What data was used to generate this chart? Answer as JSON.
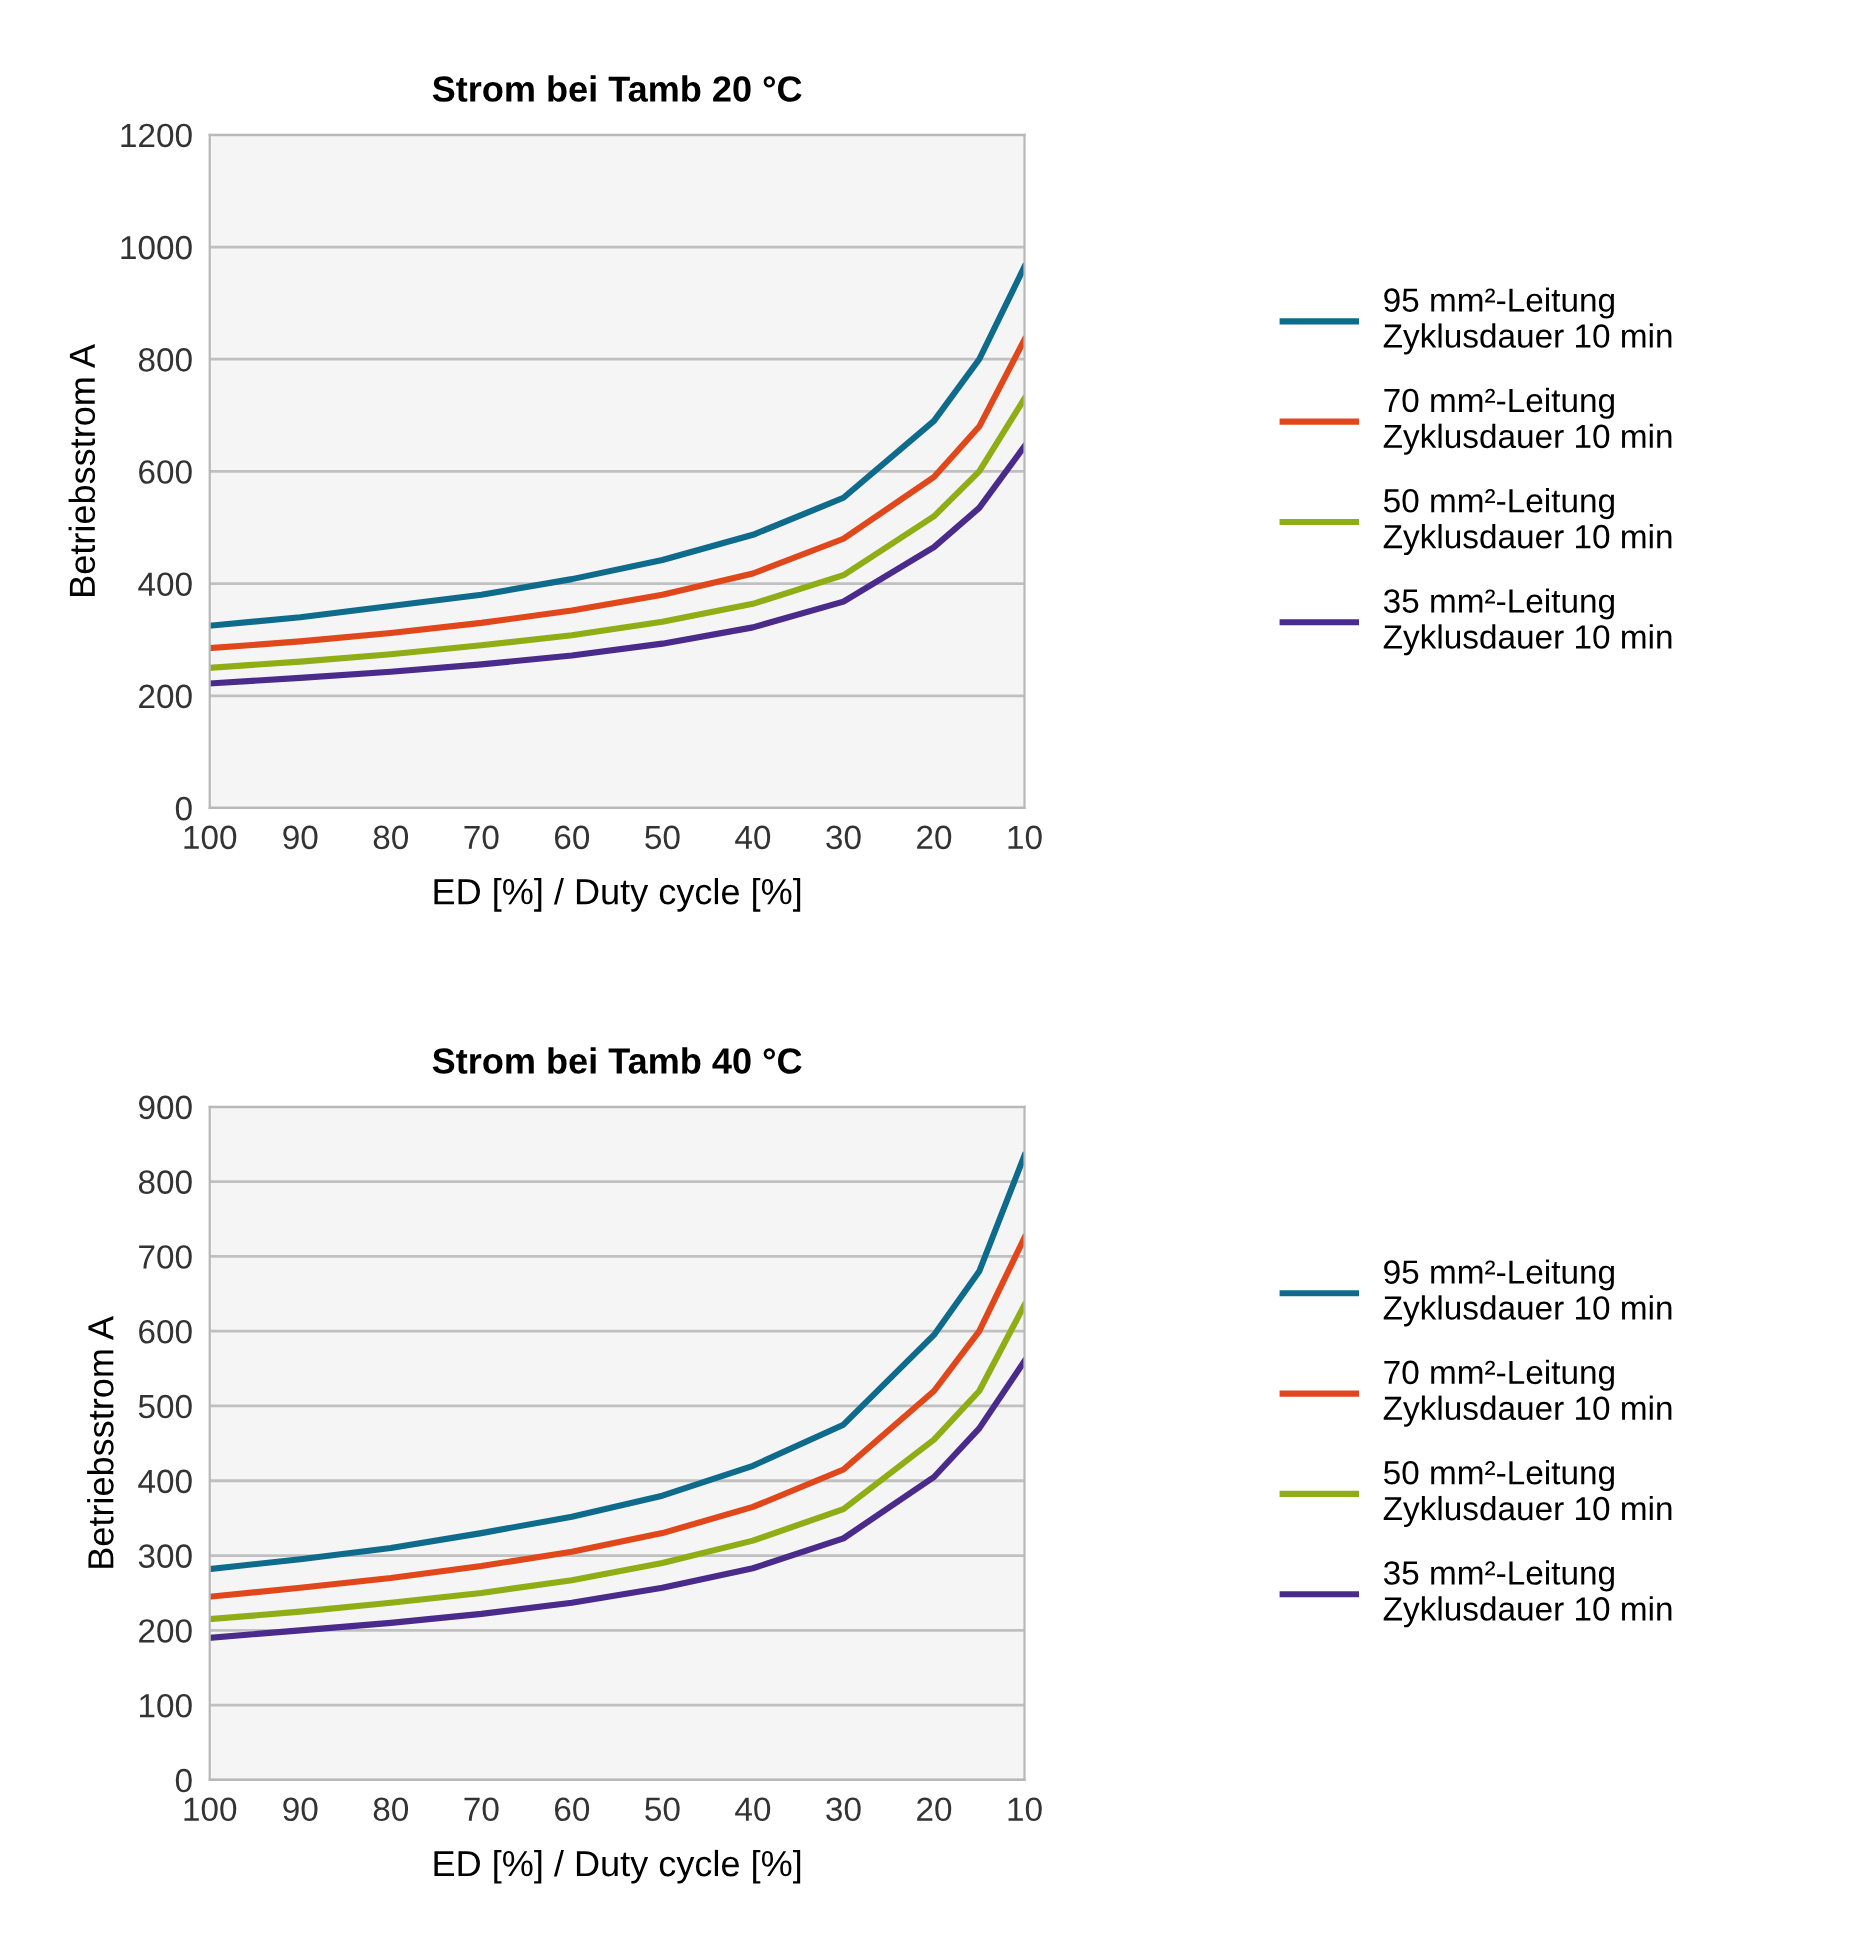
{
  "chart_data": [
    {
      "type": "line",
      "title": "Strom bei Tamb 20 °C",
      "xlabel": "ED [%] / Duty cycle [%]",
      "ylabel": "Betriebsstrom A",
      "x": [
        100,
        90,
        80,
        70,
        60,
        50,
        40,
        30,
        20,
        15,
        10
      ],
      "xlim": [
        100,
        10
      ],
      "xticks": [
        100,
        90,
        80,
        70,
        60,
        50,
        40,
        30,
        20,
        10
      ],
      "ylim": [
        0,
        1200
      ],
      "yticks": [
        0,
        200,
        400,
        600,
        800,
        1000,
        1200
      ],
      "grid": "y",
      "legend": "right",
      "marker": "none",
      "line_style": "solid",
      "series": [
        {
          "name": "95 mm²-Leitung\nZyklusdauer 10 min",
          "color": "#0e6b8c",
          "values": [
            325,
            340,
            360,
            380,
            408,
            442,
            487,
            553,
            690,
            800,
            965
          ]
        },
        {
          "name": "70 mm²-Leitung\nZyklusdauer 10 min",
          "color": "#e0471b",
          "values": [
            285,
            297,
            312,
            330,
            352,
            380,
            418,
            480,
            590,
            680,
            835
          ]
        },
        {
          "name": "50 mm²-Leitung\nZyklusdauer 10 min",
          "color": "#8fad15",
          "values": [
            250,
            261,
            274,
            290,
            308,
            332,
            364,
            415,
            520,
            600,
            730
          ]
        },
        {
          "name": "35 mm²-Leitung\nZyklusdauer 10 min",
          "color": "#4a2a8a",
          "values": [
            222,
            232,
            243,
            256,
            272,
            293,
            322,
            368,
            465,
            535,
            645
          ]
        }
      ]
    },
    {
      "type": "line",
      "title": "Strom bei Tamb 40 °C",
      "xlabel": "ED [%] / Duty cycle [%]",
      "ylabel": "Betriebsstrom A",
      "x": [
        100,
        90,
        80,
        70,
        60,
        50,
        40,
        30,
        20,
        15,
        10
      ],
      "xlim": [
        100,
        10
      ],
      "xticks": [
        100,
        90,
        80,
        70,
        60,
        50,
        40,
        30,
        20,
        10
      ],
      "ylim": [
        0,
        900
      ],
      "yticks": [
        0,
        100,
        200,
        300,
        400,
        500,
        600,
        700,
        800,
        900
      ],
      "grid": "y",
      "legend": "right",
      "marker": "none",
      "line_style": "solid",
      "series": [
        {
          "name": "95 mm²-Leitung\nZyklusdauer 10 min",
          "color": "#0e6b8c",
          "values": [
            282,
            295,
            310,
            330,
            352,
            380,
            420,
            475,
            595,
            680,
            835
          ]
        },
        {
          "name": "70 mm²-Leitung\nZyklusdauer 10 min",
          "color": "#e0471b",
          "values": [
            245,
            257,
            270,
            286,
            305,
            330,
            365,
            415,
            520,
            600,
            725
          ]
        },
        {
          "name": "50 mm²-Leitung\nZyklusdauer 10 min",
          "color": "#8fad15",
          "values": [
            215,
            225,
            237,
            250,
            267,
            290,
            320,
            362,
            455,
            520,
            635
          ]
        },
        {
          "name": "35 mm²-Leitung\nZyklusdauer 10 min",
          "color": "#4a2a8a",
          "values": [
            190,
            200,
            210,
            222,
            237,
            257,
            283,
            323,
            405,
            470,
            560
          ]
        }
      ]
    }
  ]
}
